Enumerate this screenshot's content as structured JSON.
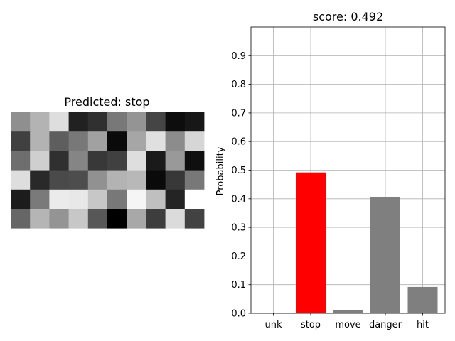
{
  "chart_data": [
    {
      "type": "heatmap",
      "title": "Predicted: stop",
      "colormap": "gray",
      "value_range": [
        0,
        1
      ],
      "rows": 6,
      "cols": 10,
      "values": [
        [
          0.56,
          0.7,
          0.87,
          0.13,
          0.19,
          0.47,
          0.58,
          0.27,
          0.05,
          0.09
        ],
        [
          0.25,
          0.7,
          0.37,
          0.47,
          0.63,
          0.04,
          0.65,
          0.88,
          0.55,
          0.84
        ],
        [
          0.43,
          0.81,
          0.19,
          0.52,
          0.22,
          0.25,
          0.87,
          0.1,
          0.6,
          0.06
        ],
        [
          0.87,
          0.16,
          0.29,
          0.3,
          0.57,
          0.7,
          0.72,
          0.04,
          0.22,
          0.47
        ],
        [
          0.11,
          0.48,
          0.92,
          0.91,
          0.78,
          0.47,
          0.96,
          0.75,
          0.14,
          1.0
        ],
        [
          0.4,
          0.71,
          0.58,
          0.78,
          0.34,
          0.0,
          0.66,
          0.24,
          0.86,
          0.26
        ]
      ]
    },
    {
      "type": "bar",
      "title": "score: 0.492",
      "ylabel": "Probability",
      "xlabel": "",
      "categories": [
        "unk",
        "stop",
        "move",
        "danger",
        "hit"
      ],
      "values": [
        0.0,
        0.492,
        0.01,
        0.407,
        0.092
      ],
      "colors": [
        "#7f7f7f",
        "#ff0000",
        "#7f7f7f",
        "#7f7f7f",
        "#7f7f7f"
      ],
      "ylim": [
        0,
        1
      ],
      "yticks": [
        0.0,
        0.1,
        0.2,
        0.3,
        0.4,
        0.5,
        0.6,
        0.7,
        0.8,
        0.9
      ],
      "ytick_labels": [
        "0.0",
        "0.1",
        "0.2",
        "0.3",
        "0.4",
        "0.5",
        "0.6",
        "0.7",
        "0.8",
        "0.9"
      ],
      "grid": true
    }
  ]
}
